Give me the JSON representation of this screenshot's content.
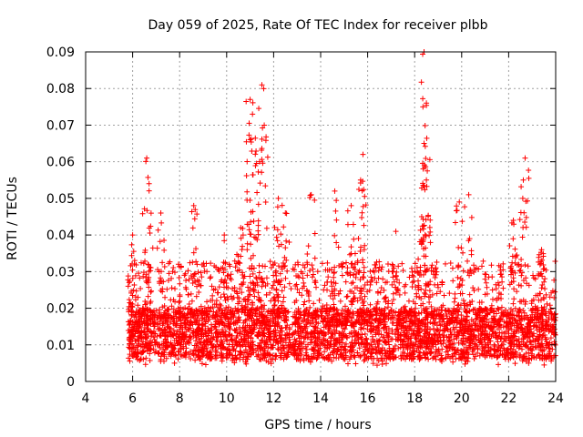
{
  "chart_data": {
    "type": "scatter",
    "title": "Day 059 of 2025, Rate Of TEC Index for receiver plbb",
    "xlabel": "GPS time / hours",
    "ylabel": "ROTI / TECUs",
    "xlim": [
      4,
      24
    ],
    "ylim": [
      0,
      0.09
    ],
    "x_ticks": [
      4,
      6,
      8,
      10,
      12,
      14,
      16,
      18,
      20,
      22,
      24
    ],
    "y_ticks": [
      0,
      0.01,
      0.02,
      0.03,
      0.04,
      0.05,
      0.06,
      0.07,
      0.08,
      0.09
    ],
    "x_tick_labels": [
      "4",
      "6",
      "8",
      "10",
      "12",
      "14",
      "16",
      "18",
      "20",
      "22",
      "24"
    ],
    "y_tick_labels": [
      "0",
      "0.01",
      "0.02",
      "0.03",
      "0.04",
      "0.05",
      "0.06",
      "0.07",
      "0.08",
      "0.09"
    ],
    "grid": true,
    "marker": "+",
    "marker_color": "#ff0000",
    "data_range_x": [
      5.8,
      24
    ],
    "baseline_range": [
      0.006,
      0.02
    ],
    "peaks": [
      {
        "x": 6.6,
        "y": 0.061
      },
      {
        "x": 6.7,
        "y": 0.054
      },
      {
        "x": 6.0,
        "y": 0.04
      },
      {
        "x": 7.2,
        "y": 0.046
      },
      {
        "x": 8.6,
        "y": 0.048
      },
      {
        "x": 9.9,
        "y": 0.04
      },
      {
        "x": 10.6,
        "y": 0.042
      },
      {
        "x": 11.0,
        "y": 0.077
      },
      {
        "x": 11.1,
        "y": 0.073
      },
      {
        "x": 11.5,
        "y": 0.081
      },
      {
        "x": 11.6,
        "y": 0.07
      },
      {
        "x": 11.4,
        "y": 0.06
      },
      {
        "x": 11.0,
        "y": 0.066
      },
      {
        "x": 12.2,
        "y": 0.05
      },
      {
        "x": 12.5,
        "y": 0.046
      },
      {
        "x": 13.6,
        "y": 0.051
      },
      {
        "x": 14.6,
        "y": 0.052
      },
      {
        "x": 15.3,
        "y": 0.048
      },
      {
        "x": 15.8,
        "y": 0.062
      },
      {
        "x": 15.7,
        "y": 0.055
      },
      {
        "x": 17.2,
        "y": 0.041
      },
      {
        "x": 18.4,
        "y": 0.09
      },
      {
        "x": 18.5,
        "y": 0.076
      },
      {
        "x": 18.4,
        "y": 0.065
      },
      {
        "x": 18.5,
        "y": 0.055
      },
      {
        "x": 18.3,
        "y": 0.045
      },
      {
        "x": 19.9,
        "y": 0.049
      },
      {
        "x": 20.3,
        "y": 0.051
      },
      {
        "x": 22.7,
        "y": 0.061
      },
      {
        "x": 22.6,
        "y": 0.05
      },
      {
        "x": 22.2,
        "y": 0.044
      },
      {
        "x": 23.4,
        "y": 0.036
      }
    ]
  }
}
